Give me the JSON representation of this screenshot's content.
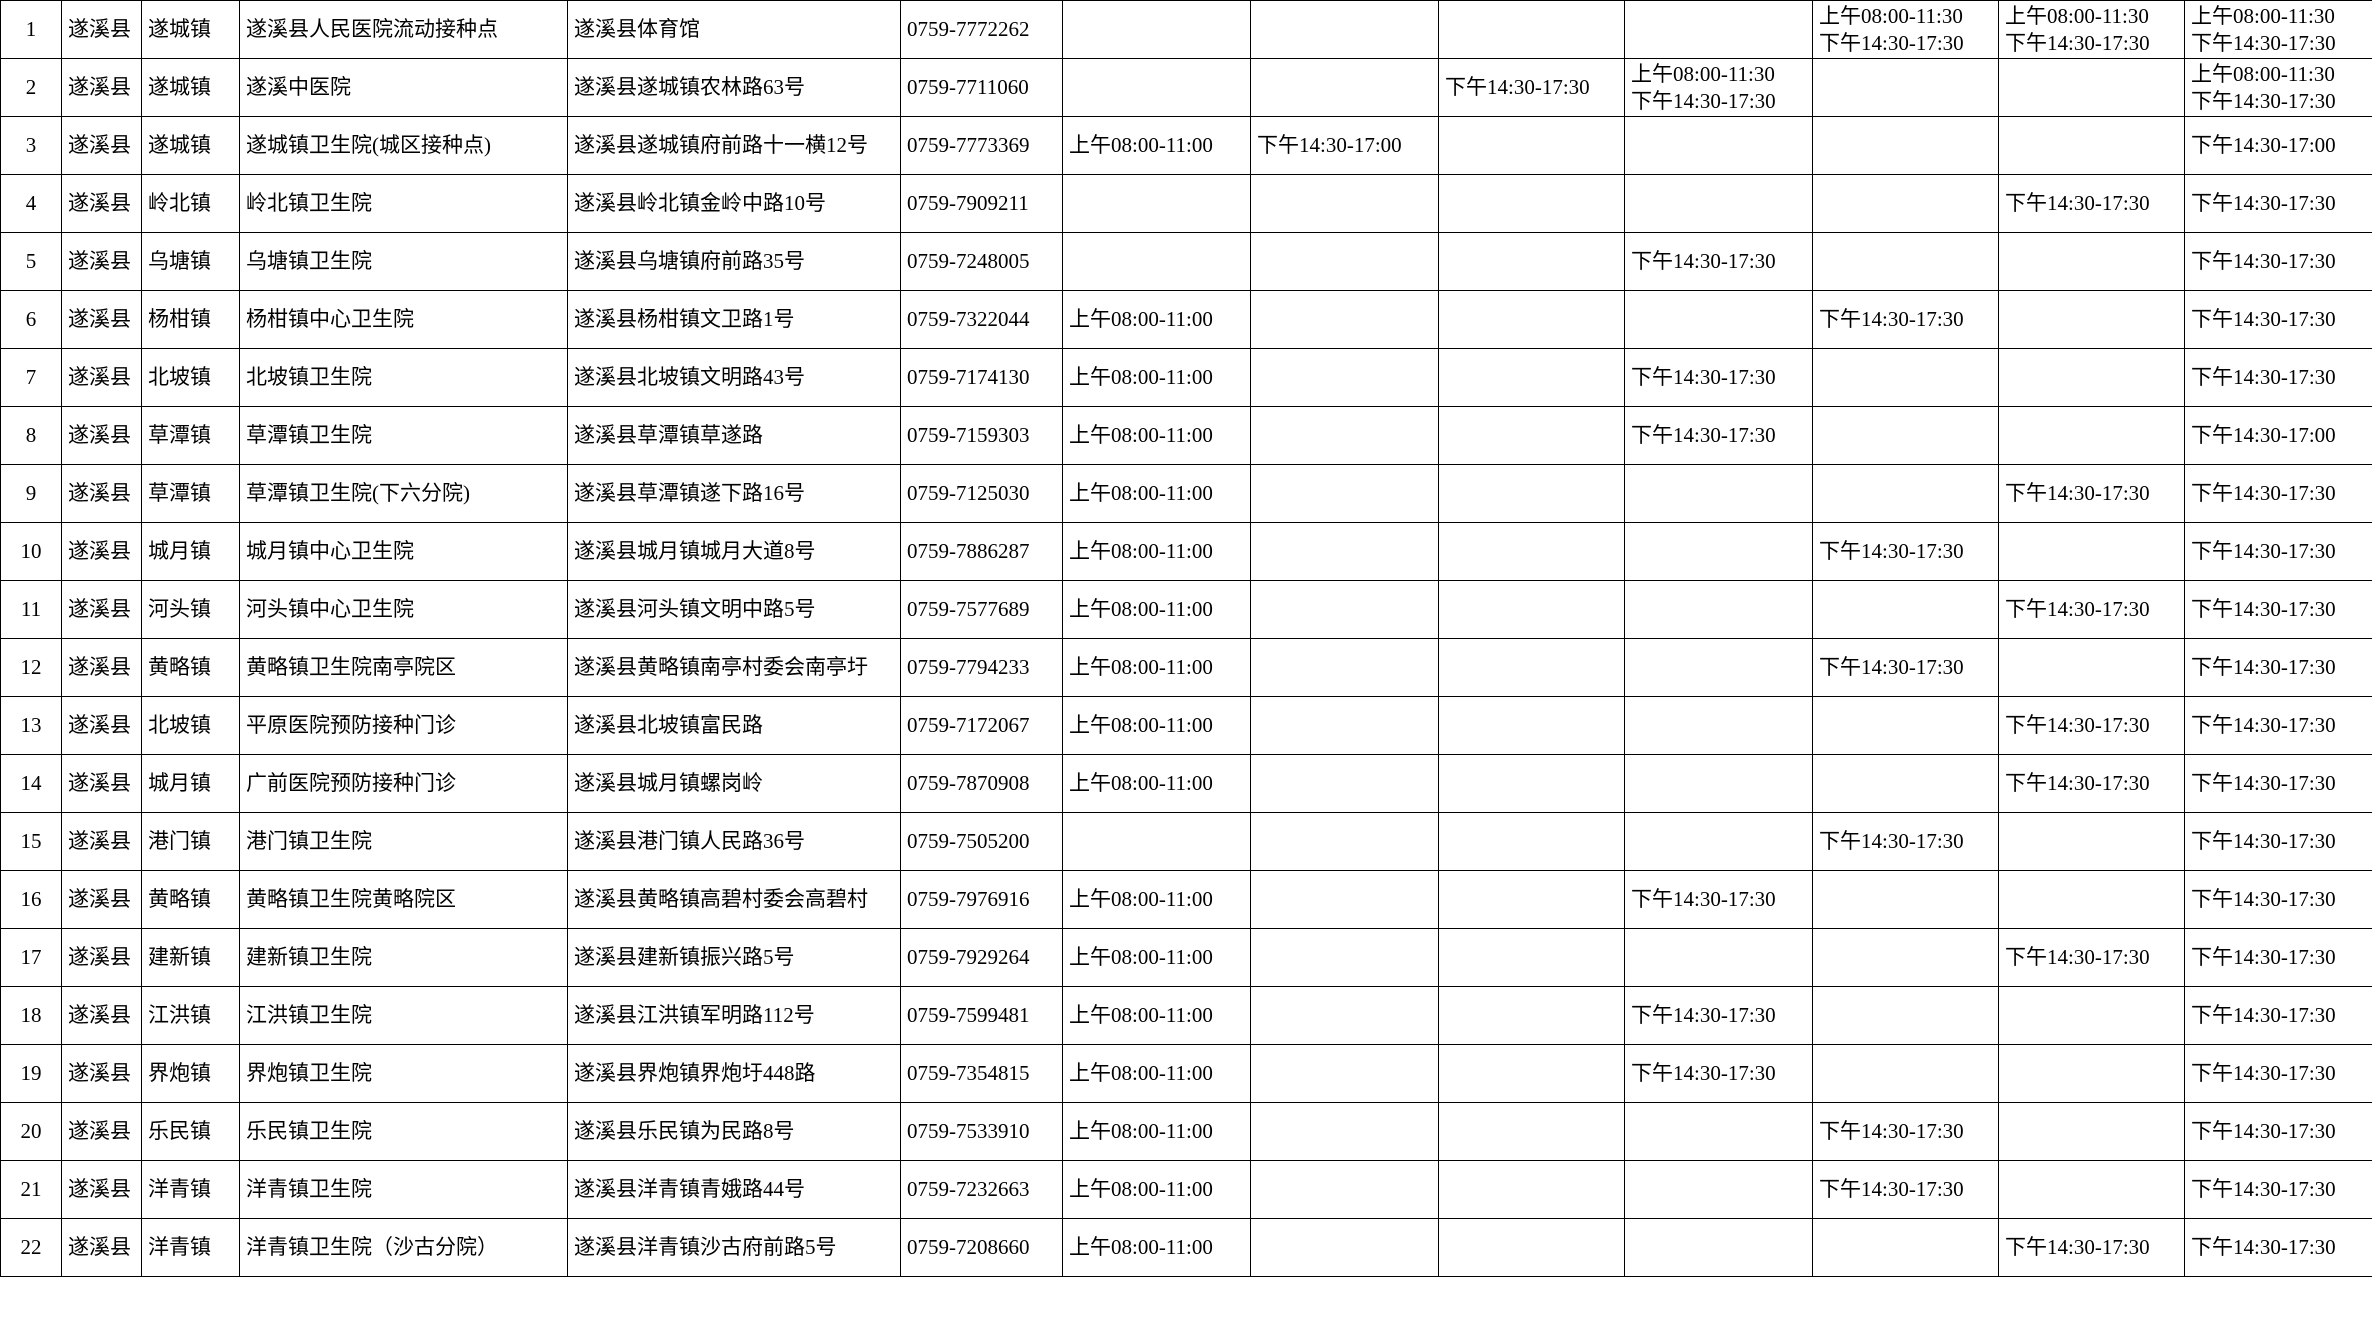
{
  "table": {
    "rows": [
      [
        1,
        "遂溪县",
        "遂城镇",
        "遂溪县人民医院流动接种点",
        "遂溪县体育馆",
        "0759-7772262",
        null,
        null,
        null,
        null,
        [
          "上午08:00-11:30",
          "下午14:30-17:30"
        ],
        [
          "上午08:00-11:30",
          "下午14:30-17:30"
        ],
        [
          "上午08:00-11:30",
          "下午14:30-17:30"
        ]
      ],
      [
        2,
        "遂溪县",
        "遂城镇",
        "遂溪中医院",
        "遂溪县遂城镇农林路63号",
        "0759-7711060",
        null,
        null,
        "下午14:30-17:30",
        [
          "上午08:00-11:30",
          "下午14:30-17:30"
        ],
        null,
        null,
        [
          "上午08:00-11:30",
          "下午14:30-17:30"
        ]
      ],
      [
        3,
        "遂溪县",
        "遂城镇",
        "遂城镇卫生院(城区接种点)",
        "遂溪县遂城镇府前路十一横12号",
        "0759-7773369",
        "上午08:00-11:00",
        "下午14:30-17:00",
        null,
        null,
        null,
        null,
        "下午14:30-17:00"
      ],
      [
        4,
        "遂溪县",
        "岭北镇",
        "岭北镇卫生院",
        "遂溪县岭北镇金岭中路10号",
        "0759-7909211",
        null,
        null,
        null,
        null,
        null,
        "下午14:30-17:30",
        "下午14:30-17:30"
      ],
      [
        5,
        "遂溪县",
        "乌塘镇",
        "乌塘镇卫生院",
        "遂溪县乌塘镇府前路35号",
        "0759-7248005",
        null,
        null,
        null,
        "下午14:30-17:30",
        null,
        null,
        "下午14:30-17:30"
      ],
      [
        6,
        "遂溪县",
        "杨柑镇",
        "杨柑镇中心卫生院",
        "遂溪县杨柑镇文卫路1号",
        "0759-7322044",
        "上午08:00-11:00",
        null,
        null,
        null,
        "下午14:30-17:30",
        null,
        "下午14:30-17:30"
      ],
      [
        7,
        "遂溪县",
        "北坡镇",
        "北坡镇卫生院",
        "遂溪县北坡镇文明路43号",
        "0759-7174130",
        "上午08:00-11:00",
        null,
        null,
        "下午14:30-17:30",
        null,
        null,
        "下午14:30-17:30"
      ],
      [
        8,
        "遂溪县",
        "草潭镇",
        "草潭镇卫生院",
        "遂溪县草潭镇草遂路",
        "0759-7159303",
        "上午08:00-11:00",
        null,
        null,
        "下午14:30-17:30",
        null,
        null,
        "下午14:30-17:00"
      ],
      [
        9,
        "遂溪县",
        "草潭镇",
        "草潭镇卫生院(下六分院)",
        "遂溪县草潭镇遂下路16号",
        "0759-7125030",
        "上午08:00-11:00",
        null,
        null,
        null,
        null,
        "下午14:30-17:30",
        "下午14:30-17:30"
      ],
      [
        10,
        "遂溪县",
        "城月镇",
        "城月镇中心卫生院",
        "遂溪县城月镇城月大道8号",
        "0759-7886287",
        "上午08:00-11:00",
        null,
        null,
        null,
        "下午14:30-17:30",
        null,
        "下午14:30-17:30"
      ],
      [
        11,
        "遂溪县",
        "河头镇",
        "河头镇中心卫生院",
        "遂溪县河头镇文明中路5号",
        "0759-7577689",
        "上午08:00-11:00",
        null,
        null,
        null,
        null,
        "下午14:30-17:30",
        "下午14:30-17:30"
      ],
      [
        12,
        "遂溪县",
        "黄略镇",
        "黄略镇卫生院南亭院区",
        "遂溪县黄略镇南亭村委会南亭圩",
        "0759-7794233",
        "上午08:00-11:00",
        null,
        null,
        null,
        "下午14:30-17:30",
        null,
        "下午14:30-17:30"
      ],
      [
        13,
        "遂溪县",
        "北坡镇",
        "平原医院预防接种门诊",
        "遂溪县北坡镇富民路",
        "0759-7172067",
        "上午08:00-11:00",
        null,
        null,
        null,
        null,
        "下午14:30-17:30",
        "下午14:30-17:30"
      ],
      [
        14,
        "遂溪县",
        "城月镇",
        "广前医院预防接种门诊",
        "遂溪县城月镇螺岗岭",
        "0759-7870908",
        "上午08:00-11:00",
        null,
        null,
        null,
        null,
        "下午14:30-17:30",
        "下午14:30-17:30"
      ],
      [
        15,
        "遂溪县",
        "港门镇",
        "港门镇卫生院",
        "遂溪县港门镇人民路36号",
        "0759-7505200",
        null,
        null,
        null,
        null,
        "下午14:30-17:30",
        null,
        "下午14:30-17:30"
      ],
      [
        16,
        "遂溪县",
        "黄略镇",
        "黄略镇卫生院黄略院区",
        "遂溪县黄略镇高碧村委会高碧村",
        "0759-7976916",
        "上午08:00-11:00",
        null,
        null,
        "下午14:30-17:30",
        null,
        null,
        "下午14:30-17:30"
      ],
      [
        17,
        "遂溪县",
        "建新镇",
        "建新镇卫生院",
        "遂溪县建新镇振兴路5号",
        "0759-7929264",
        "上午08:00-11:00",
        null,
        null,
        null,
        null,
        "下午14:30-17:30",
        "下午14:30-17:30"
      ],
      [
        18,
        "遂溪县",
        "江洪镇",
        "江洪镇卫生院",
        "遂溪县江洪镇军明路112号",
        "0759-7599481",
        "上午08:00-11:00",
        null,
        null,
        "下午14:30-17:30",
        null,
        null,
        "下午14:30-17:30"
      ],
      [
        19,
        "遂溪县",
        "界炮镇",
        "界炮镇卫生院",
        "遂溪县界炮镇界炮圩448路",
        "0759-7354815",
        "上午08:00-11:00",
        null,
        null,
        "下午14:30-17:30",
        null,
        null,
        "下午14:30-17:30"
      ],
      [
        20,
        "遂溪县",
        "乐民镇",
        "乐民镇卫生院",
        "遂溪县乐民镇为民路8号",
        "0759-7533910",
        "上午08:00-11:00",
        null,
        null,
        null,
        "下午14:30-17:30",
        null,
        "下午14:30-17:30"
      ],
      [
        21,
        "遂溪县",
        "洋青镇",
        "洋青镇卫生院",
        "遂溪县洋青镇青娥路44号",
        "0759-7232663",
        "上午08:00-11:00",
        null,
        null,
        null,
        "下午14:30-17:30",
        null,
        "下午14:30-17:30"
      ],
      [
        22,
        "遂溪县",
        "洋青镇",
        "洋青镇卫生院（沙古分院）",
        "遂溪县洋青镇沙古府前路5号",
        "0759-7208660",
        "上午08:00-11:00",
        null,
        null,
        null,
        null,
        "下午14:30-17:30",
        "下午14:30-17:30"
      ]
    ]
  }
}
